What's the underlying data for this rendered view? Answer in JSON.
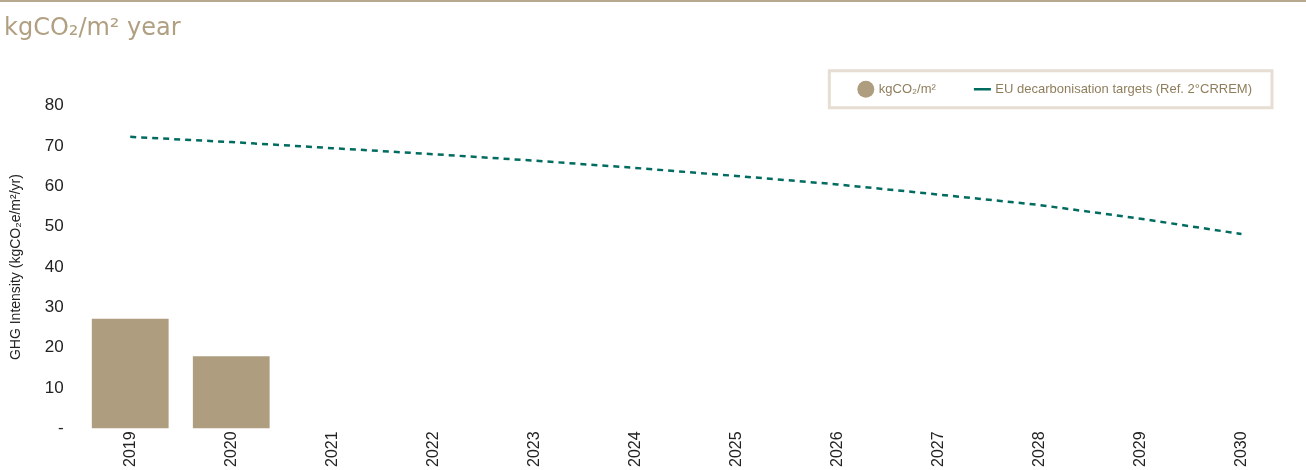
{
  "chart_data": {
    "type": "bar",
    "title": "kgCO₂/m² year",
    "ylabel": "GHG Intensity (kgCO₂e/m²/yr)",
    "categories": [
      "2019",
      "2020",
      "2021",
      "2022",
      "2023",
      "2024",
      "2025",
      "2026",
      "2027",
      "2028",
      "2029",
      "2030"
    ],
    "series": [
      {
        "name": "kgCO₂/m²",
        "color": "#ae9d7f",
        "values": [
          27.2,
          17.9,
          null,
          null,
          null,
          null,
          null,
          null,
          null,
          null,
          null,
          null
        ]
      },
      {
        "name": "EU decarbonisation targets (Ref. 2°CRREM)",
        "type": "line",
        "color": "#006b5f",
        "line_style": "dashed",
        "marker": "none",
        "values": [
          72.3,
          71,
          69.5,
          68,
          66.4,
          64.6,
          62.6,
          60.5,
          58,
          55.4,
          52,
          48.2
        ]
      }
    ],
    "ylim": [
      0,
      80
    ],
    "yticks": [
      {
        "value": 0,
        "label": "-"
      },
      10,
      20,
      30,
      40,
      50,
      60,
      70,
      80
    ],
    "grid": false,
    "legend": "top right"
  }
}
